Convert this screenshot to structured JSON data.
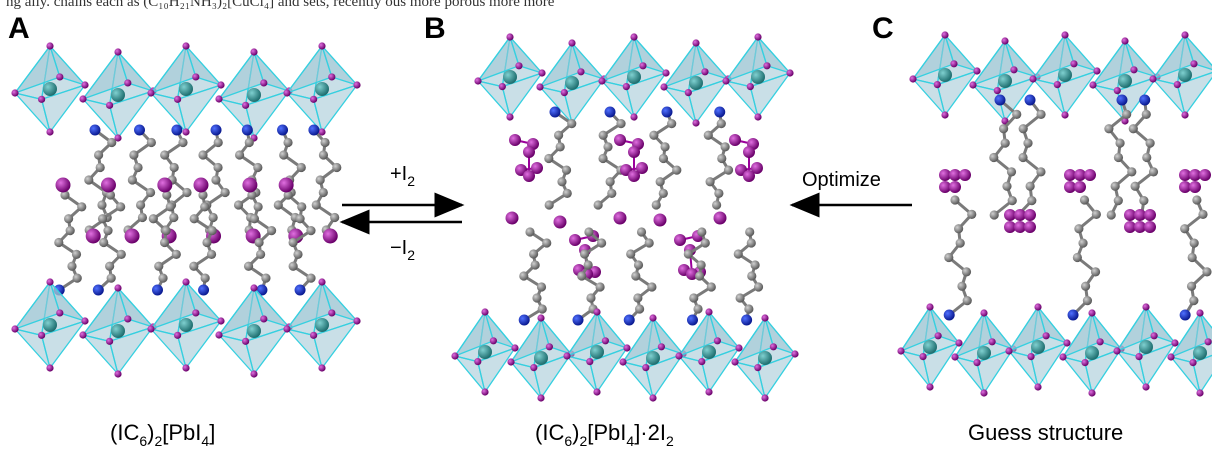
{
  "top_text_fragment": "ng   ally.   chains   each   as   (C₁₀H₂₁NH₃)₂[CuCl₄]   and   sets,   recently   ous   more   porous   more   more",
  "panels": [
    {
      "letter": "A",
      "caption_parts": [
        "(IC",
        "6",
        ")",
        "2",
        "[PbI",
        "4",
        "]"
      ]
    },
    {
      "letter": "B",
      "caption_parts": [
        "(IC",
        "6",
        ")",
        "2",
        "[PbI",
        "4",
        "]·2I",
        "2"
      ]
    },
    {
      "letter": "C",
      "caption_text": "Guess structure"
    }
  ],
  "arrows": {
    "forward_label": [
      "+I",
      "2"
    ],
    "reverse_label": [
      "−I",
      "2"
    ],
    "optimize_label": "Optimize"
  },
  "colors": {
    "octahedron_fill": "#9cc4d4",
    "octahedron_edge": "#35d0e0",
    "lead": "#2a8a8a",
    "iodide": "#8b1a8b",
    "iodine_molecule": "#9b009b",
    "carbon": "#8c8c8c",
    "nitrogen": "#1030c0"
  }
}
